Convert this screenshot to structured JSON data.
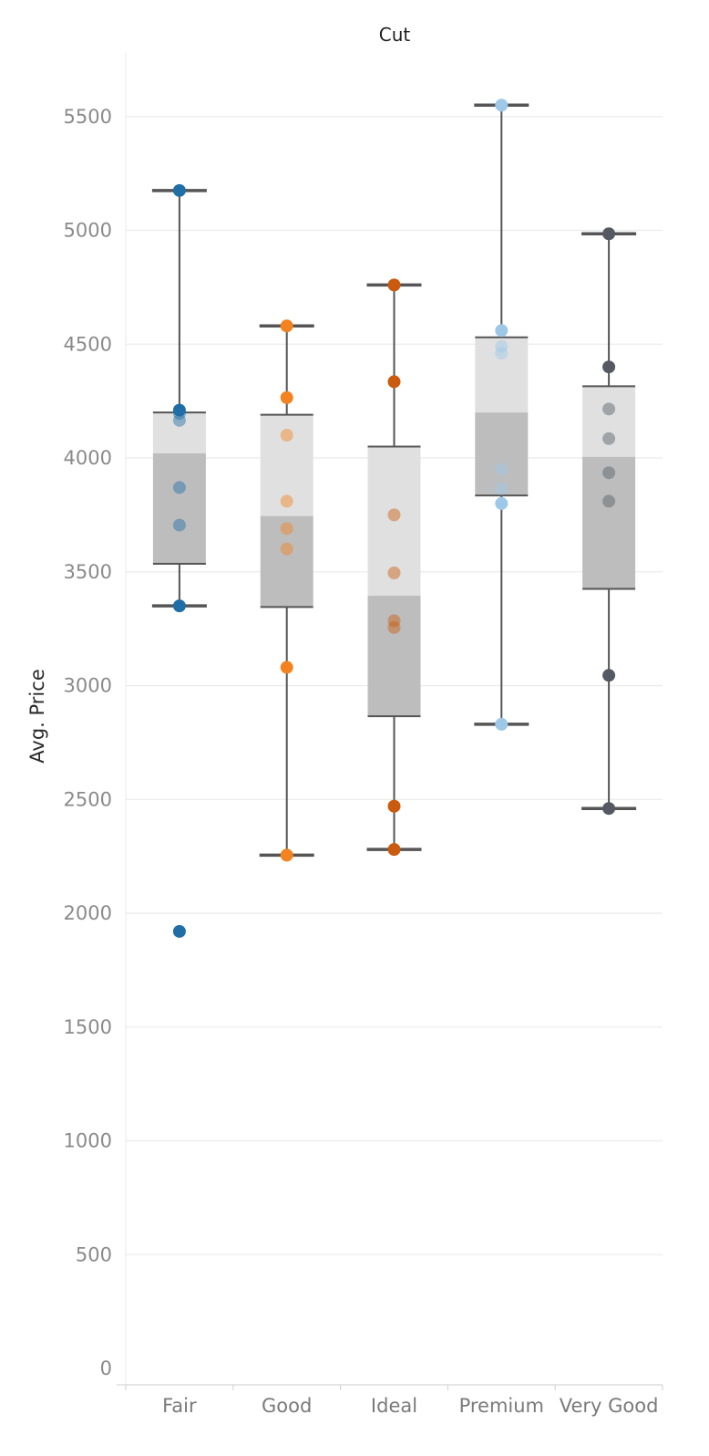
{
  "chart_data": {
    "type": "box",
    "header": "Cut",
    "ylabel": "Avg. Price",
    "ylim": [
      0,
      5700
    ],
    "yticks": [
      0,
      500,
      1000,
      1500,
      2000,
      2500,
      3000,
      3500,
      4000,
      4500,
      5000,
      5500
    ],
    "categories": [
      "Fair",
      "Good",
      "Ideal",
      "Premium",
      "Very Good"
    ],
    "grid": true,
    "boxes": [
      {
        "category": "Fair",
        "whisker_low": 3350,
        "q1": 3535,
        "median": 4020,
        "q3": 4200,
        "whisker_high": 5175,
        "points": [
          5175,
          4210,
          4195,
          4165,
          3870,
          3705,
          3350,
          1920
        ]
      },
      {
        "category": "Good",
        "whisker_low": 2255,
        "q1": 3345,
        "median": 3745,
        "q3": 4190,
        "whisker_high": 4580,
        "points": [
          4580,
          4265,
          4100,
          3810,
          3690,
          3600,
          3080,
          2255
        ]
      },
      {
        "category": "Ideal",
        "whisker_low": 2280,
        "q1": 2865,
        "median": 3395,
        "q3": 4050,
        "whisker_high": 4760,
        "points": [
          4760,
          4335,
          3750,
          3495,
          3285,
          3255,
          2470,
          2280
        ]
      },
      {
        "category": "Premium",
        "whisker_low": 2830,
        "q1": 3835,
        "median": 4200,
        "q3": 4530,
        "whisker_high": 5550,
        "points": [
          5550,
          4560,
          4490,
          4460,
          3950,
          3865,
          3800,
          2830
        ]
      },
      {
        "category": "Very Good",
        "whisker_low": 2460,
        "q1": 3425,
        "median": 4005,
        "q3": 4315,
        "whisker_high": 4985,
        "points": [
          4985,
          4400,
          4215,
          4085,
          3935,
          3810,
          3045,
          2460
        ]
      }
    ]
  },
  "colors": {
    "Fair": "#1f6ea6",
    "Good": "#f28320",
    "Ideal": "#c95a0e",
    "Premium": "#9ec8e8",
    "Very Good": "#555a62",
    "box_upper": "#e0e0e0",
    "box_lower": "#bdbdbd",
    "whisker": "#555555",
    "grid": "#ebebeb"
  }
}
